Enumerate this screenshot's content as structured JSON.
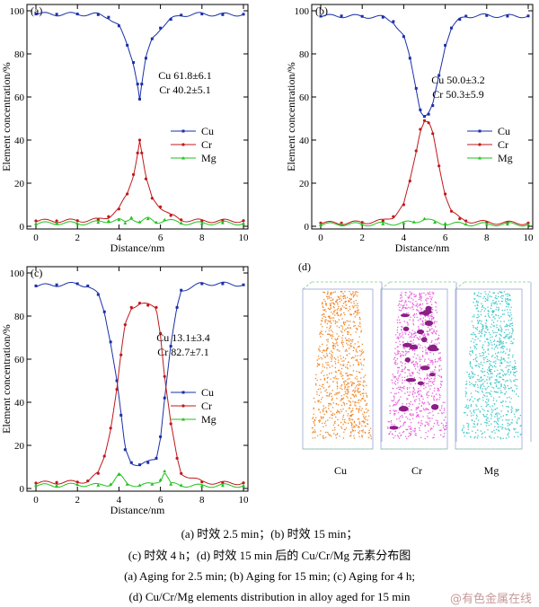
{
  "chart_data": [
    {
      "type": "line",
      "panel_label": "(a)",
      "xlabel": "Distance/nm",
      "ylabel": "Element concentration/%",
      "xlim": [
        0,
        10
      ],
      "ylim": [
        0,
        100
      ],
      "xticks": [
        "0",
        "2",
        "4",
        "6",
        "8",
        "10"
      ],
      "yticks": [
        "0",
        "20",
        "40",
        "60",
        "80",
        "100"
      ],
      "annotation": [
        "Cu 61.8±6.1",
        "Cr 40.2±5.1"
      ],
      "legend_position": "right",
      "series": [
        {
          "name": "Cu",
          "color": "#1a2fa8",
          "marker": "square",
          "x": [
            0,
            1,
            2,
            3,
            3.5,
            4,
            4.4,
            4.7,
            4.9,
            5.0,
            5.1,
            5.3,
            5.6,
            6.0,
            6.5,
            7,
            8,
            9,
            10
          ],
          "y": [
            98.5,
            98.4,
            98.5,
            98.2,
            97,
            93,
            84,
            76,
            66,
            59,
            66,
            78,
            87,
            92,
            96,
            98,
            98.5,
            98.2,
            98.4
          ]
        },
        {
          "name": "Cr",
          "color": "#c0181c",
          "marker": "circle",
          "x": [
            0,
            1,
            2,
            3,
            3.5,
            4,
            4.4,
            4.7,
            4.9,
            5.0,
            5.1,
            5.3,
            5.6,
            6.0,
            6.5,
            7,
            8,
            9,
            10
          ],
          "y": [
            2.5,
            2.5,
            2.6,
            3,
            4.5,
            8,
            15,
            24,
            34,
            40,
            34,
            22,
            13,
            9,
            5,
            3,
            2.5,
            2.5,
            2.6
          ]
        },
        {
          "name": "Mg",
          "color": "#21c21e",
          "marker": "triangle",
          "x": [
            0,
            1,
            2,
            3,
            3.5,
            4,
            4.3,
            4.6,
            5.0,
            5.4,
            5.8,
            6.2,
            7,
            8,
            9,
            10
          ],
          "y": [
            1.2,
            1.5,
            1.3,
            1.8,
            2.5,
            3,
            1.5,
            4,
            2,
            3.5,
            1.8,
            3,
            1.5,
            1.3,
            1.6,
            1.3
          ]
        }
      ]
    },
    {
      "type": "line",
      "panel_label": "(b)",
      "xlabel": "Distance/nm",
      "ylabel": "Element concentration/%",
      "xlim": [
        0,
        10
      ],
      "ylim": [
        0,
        100
      ],
      "xticks": [
        "0",
        "2",
        "4",
        "6",
        "8",
        "10"
      ],
      "yticks": [
        "0",
        "20",
        "40",
        "60",
        "80",
        "100"
      ],
      "annotation": [
        "Cu 50.0±3.2",
        "Cr 50.3±5.9"
      ],
      "legend_position": "bottom-right",
      "series": [
        {
          "name": "Cu",
          "color": "#1a2fa8",
          "marker": "square",
          "x": [
            0,
            1,
            2,
            3,
            3.5,
            4,
            4.3,
            4.6,
            4.8,
            5.0,
            5.2,
            5.4,
            5.7,
            6.0,
            6.3,
            6.7,
            7,
            8,
            9,
            10
          ],
          "y": [
            97.5,
            97.6,
            97.4,
            97,
            95,
            88,
            78,
            64,
            54,
            51,
            52,
            56,
            70,
            84,
            92,
            96,
            97.5,
            97.8,
            97.5,
            97.6
          ]
        },
        {
          "name": "Cr",
          "color": "#c0181c",
          "marker": "circle",
          "x": [
            0,
            1,
            2,
            3,
            3.5,
            4,
            4.3,
            4.6,
            4.8,
            5.0,
            5.2,
            5.4,
            5.7,
            6.0,
            6.3,
            6.7,
            7,
            8,
            9,
            10
          ],
          "y": [
            1.5,
            1.5,
            1.8,
            2.5,
            4.5,
            10,
            21,
            35,
            45,
            49,
            48,
            43,
            28,
            15,
            7,
            3.5,
            2.5,
            1.8,
            1.6,
            1.5
          ]
        },
        {
          "name": "Mg",
          "color": "#21c21e",
          "marker": "triangle",
          "x": [
            0,
            1,
            2,
            3,
            4,
            4.5,
            5.0,
            5.5,
            6,
            7,
            8,
            9,
            10
          ],
          "y": [
            0.8,
            1.0,
            0.9,
            1.1,
            1.5,
            2,
            3.5,
            1.8,
            1.3,
            1.0,
            0.9,
            1.0,
            0.8
          ]
        }
      ]
    },
    {
      "type": "line",
      "panel_label": "(c)",
      "xlabel": "Distance/nm",
      "ylabel": "Element concentration/%",
      "xlim": [
        0,
        10
      ],
      "ylim": [
        0,
        100
      ],
      "xticks": [
        "0",
        "2",
        "4",
        "6",
        "8",
        "10"
      ],
      "yticks": [
        "0",
        "20",
        "40",
        "60",
        "80",
        "100"
      ],
      "annotation": [
        "Cu 13.1±3.4",
        "Cr 82.7±7.1"
      ],
      "legend_position": "bottom-right",
      "series": [
        {
          "name": "Cu",
          "color": "#1a2fa8",
          "marker": "square",
          "x": [
            0,
            1,
            2,
            2.5,
            3,
            3.3,
            3.6,
            3.9,
            4.1,
            4.3,
            4.6,
            5.0,
            5.4,
            5.8,
            6.0,
            6.2,
            6.5,
            6.8,
            7,
            8,
            9,
            10
          ],
          "y": [
            94,
            94.5,
            95,
            94,
            90,
            82,
            68,
            50,
            34,
            18,
            12,
            11,
            12,
            14,
            24,
            42,
            66,
            84,
            92,
            95,
            95,
            94.5
          ]
        },
        {
          "name": "Cr",
          "color": "#c0181c",
          "marker": "circle",
          "x": [
            0,
            1,
            2,
            2.5,
            3,
            3.3,
            3.6,
            3.9,
            4.1,
            4.3,
            4.6,
            5.0,
            5.4,
            5.8,
            6.0,
            6.2,
            6.5,
            6.8,
            7,
            8,
            9,
            10
          ],
          "y": [
            2.5,
            2.8,
            3,
            3.5,
            7,
            15,
            28,
            46,
            62,
            76,
            84,
            86,
            85,
            84,
            72,
            52,
            30,
            14,
            7,
            3,
            2.5,
            2.6
          ]
        },
        {
          "name": "Mg",
          "color": "#21c21e",
          "marker": "triangle",
          "x": [
            0,
            1,
            2,
            3,
            3.6,
            4.0,
            4.4,
            5.0,
            5.6,
            6.0,
            6.2,
            6.5,
            7,
            8,
            9,
            10
          ],
          "y": [
            1.5,
            1.3,
            1.8,
            1.5,
            2,
            6.5,
            2,
            1.5,
            2,
            4,
            8,
            2,
            1.5,
            1.2,
            1.4,
            1.3
          ]
        }
      ]
    }
  ],
  "panel_d": {
    "panel_label": "(d)",
    "columns": [
      {
        "label": "Cu",
        "color": "#f07a10"
      },
      {
        "label": "Cr",
        "color": "#e64fd9"
      },
      {
        "label": "Mg",
        "color": "#2dc3c4"
      }
    ],
    "precipitate_color": "#8a1f86"
  },
  "captions": {
    "zh_line1": "(a)  时效  2.5 min；(b)  时效  15 min；",
    "zh_line2": "(c)  时效 4 h；(d)  时效 15 min 后的 Cu/Cr/Mg 元素分布图",
    "en_line1": "(a) Aging for 2.5 min; (b) Aging for 15 min; (c) Aging for 4 h;",
    "en_line2": "(d) Cu/Cr/Mg elements distribution in alloy aged  for 15 min"
  },
  "watermark": "@有色金属在线"
}
